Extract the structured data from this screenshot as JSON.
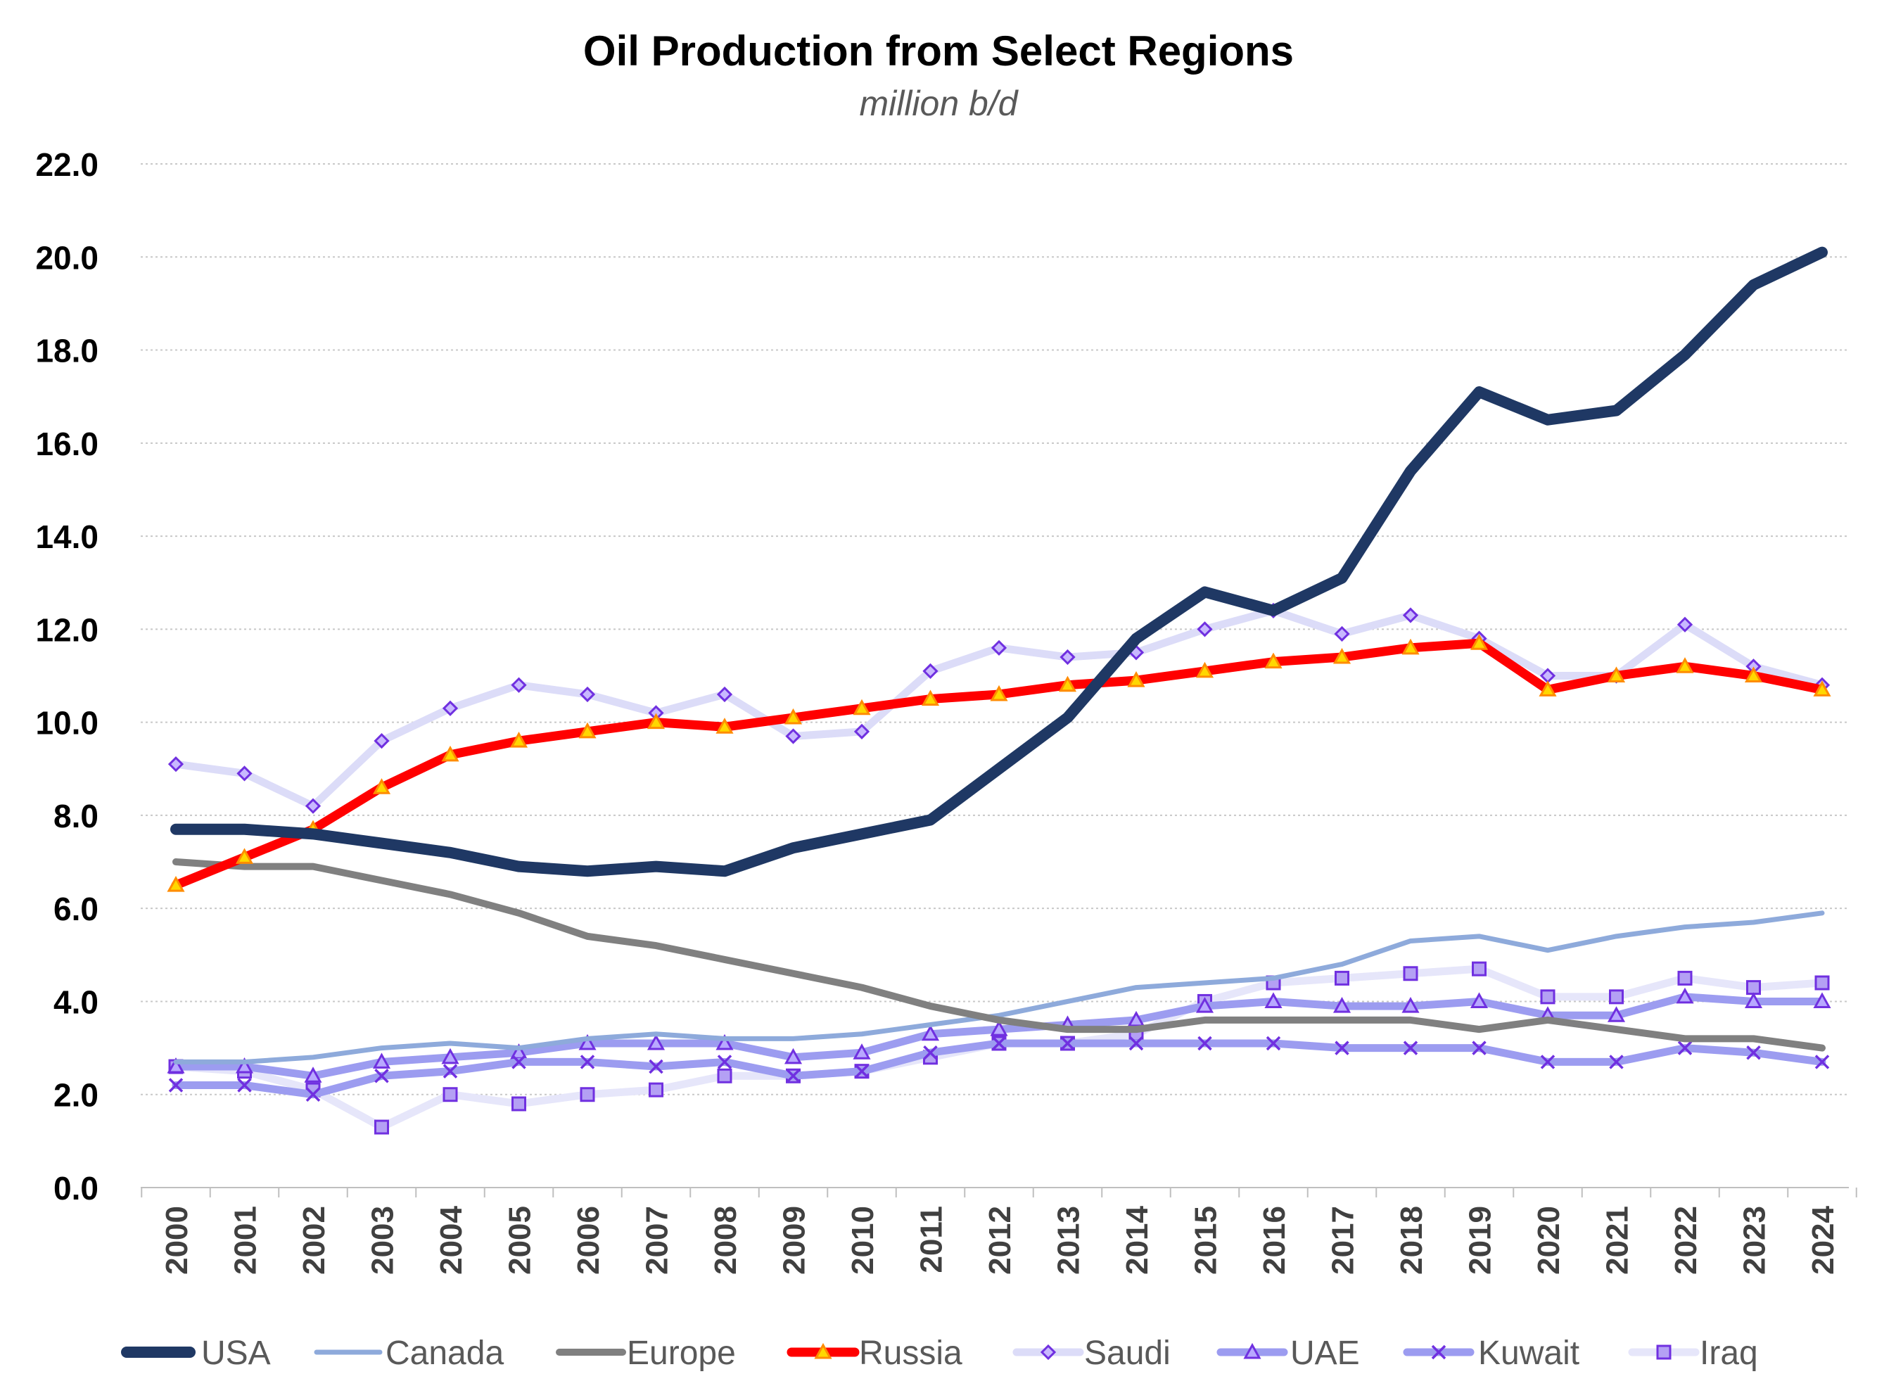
{
  "chart_data": {
    "type": "line",
    "title": "Oil Production from Select Regions",
    "subtitle": "million b/d",
    "xlabel": "",
    "ylabel": "",
    "ylim": [
      0,
      22
    ],
    "y_ticks": [
      "0.0",
      "2.0",
      "4.0",
      "6.0",
      "8.0",
      "10.0",
      "12.0",
      "14.0",
      "16.0",
      "18.0",
      "20.0",
      "22.0"
    ],
    "categories": [
      "2000",
      "2001",
      "2002",
      "2003",
      "2004",
      "2005",
      "2006",
      "2007",
      "2008",
      "2009",
      "2010",
      "2011",
      "2012",
      "2013",
      "2014",
      "2015",
      "2016",
      "2017",
      "2018",
      "2019",
      "2020",
      "2021",
      "2022",
      "2023",
      "2024"
    ],
    "grid": true,
    "legend_position": "bottom",
    "series": [
      {
        "name": "Saudi",
        "color": "#dcdcf8",
        "marker": "diamond",
        "marker_stroke": "#7030e0",
        "marker_fill": "#c8b8ff",
        "values": [
          9.1,
          8.9,
          8.2,
          9.6,
          10.3,
          10.8,
          10.6,
          10.2,
          10.6,
          9.7,
          9.8,
          11.1,
          11.6,
          11.4,
          11.5,
          12.0,
          12.4,
          11.9,
          12.3,
          11.8,
          11.0,
          11.0,
          12.1,
          11.2,
          10.8
        ]
      },
      {
        "name": "Iraq",
        "color": "#e6e6fa",
        "marker": "square",
        "marker_stroke": "#7030e0",
        "marker_fill": "#b4a0f4",
        "values": [
          2.6,
          2.5,
          2.1,
          1.3,
          2.0,
          1.8,
          2.0,
          2.1,
          2.4,
          2.4,
          2.5,
          2.8,
          3.1,
          3.1,
          3.3,
          4.0,
          4.4,
          4.5,
          4.6,
          4.7,
          4.1,
          4.1,
          4.5,
          4.3,
          4.4
        ]
      },
      {
        "name": "UAE",
        "color": "#9c9cf0",
        "marker": "triangle",
        "marker_stroke": "#7030e0",
        "marker_fill": "#b8a8ff",
        "values": [
          2.6,
          2.6,
          2.4,
          2.7,
          2.8,
          2.9,
          3.1,
          3.1,
          3.1,
          2.8,
          2.9,
          3.3,
          3.4,
          3.5,
          3.6,
          3.9,
          4.0,
          3.9,
          3.9,
          4.0,
          3.7,
          3.7,
          4.1,
          4.0,
          4.0
        ]
      },
      {
        "name": "Kuwait",
        "color": "#9c9cf0",
        "marker": "x",
        "marker_stroke": "#7030e0",
        "marker_fill": "none",
        "values": [
          2.2,
          2.2,
          2.0,
          2.4,
          2.5,
          2.7,
          2.7,
          2.6,
          2.7,
          2.4,
          2.5,
          2.9,
          3.1,
          3.1,
          3.1,
          3.1,
          3.1,
          3.0,
          3.0,
          3.0,
          2.7,
          2.7,
          3.0,
          2.9,
          2.7
        ]
      },
      {
        "name": "Canada",
        "color": "#8eaadb",
        "marker": "none",
        "values": [
          2.7,
          2.7,
          2.8,
          3.0,
          3.1,
          3.0,
          3.2,
          3.3,
          3.2,
          3.2,
          3.3,
          3.5,
          3.7,
          4.0,
          4.3,
          4.4,
          4.5,
          4.8,
          5.3,
          5.4,
          5.1,
          5.4,
          5.6,
          5.7,
          5.9
        ]
      },
      {
        "name": "Europe",
        "color": "#808080",
        "marker": "none",
        "values": [
          7.0,
          6.9,
          6.9,
          6.6,
          6.3,
          5.9,
          5.4,
          5.2,
          4.9,
          4.6,
          4.3,
          3.9,
          3.6,
          3.4,
          3.4,
          3.6,
          3.6,
          3.6,
          3.6,
          3.4,
          3.6,
          3.4,
          3.2,
          3.2,
          3.0
        ]
      },
      {
        "name": "Russia",
        "color": "#ff0000",
        "marker": "triangle",
        "marker_stroke": "#ff8c00",
        "marker_fill": "#ffd700",
        "values": [
          6.5,
          7.1,
          7.7,
          8.6,
          9.3,
          9.6,
          9.8,
          10.0,
          9.9,
          10.1,
          10.3,
          10.5,
          10.6,
          10.8,
          10.9,
          11.1,
          11.3,
          11.4,
          11.6,
          11.7,
          10.7,
          11.0,
          11.2,
          11.0,
          10.7
        ]
      },
      {
        "name": "USA",
        "color": "#1f3864",
        "marker": "none",
        "values": [
          7.7,
          7.7,
          7.6,
          7.4,
          7.2,
          6.9,
          6.8,
          6.9,
          6.8,
          7.3,
          7.6,
          7.9,
          9.0,
          10.1,
          11.8,
          12.8,
          12.4,
          13.1,
          15.4,
          17.1,
          16.5,
          16.7,
          17.9,
          19.4,
          20.1
        ]
      }
    ],
    "legend_order": [
      "USA",
      "Canada",
      "Europe",
      "Russia",
      "Saudi",
      "UAE",
      "Kuwait",
      "Iraq"
    ]
  }
}
